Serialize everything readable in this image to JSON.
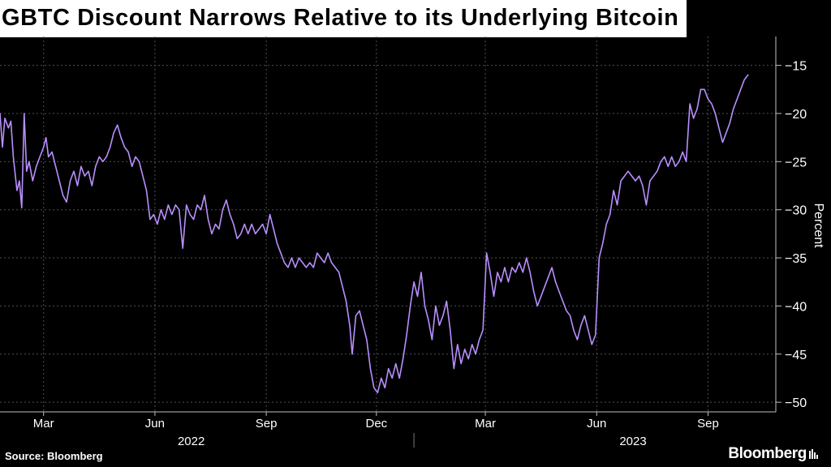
{
  "chart_data": {
    "type": "line",
    "title": "GBTC Discount Narrows Relative to its Underlying Bitcoin",
    "ylabel": "Percent",
    "xlabel": "",
    "ylim": [
      -51,
      -12
    ],
    "xlim": [
      "2022-01-24",
      "2023-10-27"
    ],
    "yticks": [
      -15,
      -20,
      -25,
      -30,
      -35,
      -40,
      -45,
      -50
    ],
    "xticks": [
      {
        "date": "2022-03-01",
        "label": "Mar"
      },
      {
        "date": "2022-06-01",
        "label": "Jun"
      },
      {
        "date": "2022-09-01",
        "label": "Sep"
      },
      {
        "date": "2022-12-01",
        "label": "Dec"
      },
      {
        "date": "2023-03-01",
        "label": "Mar"
      },
      {
        "date": "2023-06-01",
        "label": "Jun"
      },
      {
        "date": "2023-09-01",
        "label": "Sep"
      }
    ],
    "years": [
      {
        "label": "2022",
        "date": "2022-07-01"
      },
      {
        "label": "2023",
        "date": "2023-07-01"
      }
    ],
    "grid": true,
    "series": [
      {
        "color": "#b98fff",
        "points": [
          [
            "2022-01-24",
            -20.0
          ],
          [
            "2022-01-26",
            -23.5
          ],
          [
            "2022-01-28",
            -20.5
          ],
          [
            "2022-01-31",
            -21.5
          ],
          [
            "2022-02-02",
            -20.8
          ],
          [
            "2022-02-04",
            -24.5
          ],
          [
            "2022-02-07",
            -28.0
          ],
          [
            "2022-02-09",
            -27.0
          ],
          [
            "2022-02-11",
            -29.8
          ],
          [
            "2022-02-13",
            -20.0
          ],
          [
            "2022-02-15",
            -26.0
          ],
          [
            "2022-02-17",
            -25.0
          ],
          [
            "2022-02-20",
            -27.0
          ],
          [
            "2022-02-23",
            -25.5
          ],
          [
            "2022-02-26",
            -24.5
          ],
          [
            "2022-03-01",
            -23.5
          ],
          [
            "2022-03-03",
            -22.5
          ],
          [
            "2022-03-05",
            -24.5
          ],
          [
            "2022-03-08",
            -24.0
          ],
          [
            "2022-03-11",
            -25.5
          ],
          [
            "2022-03-14",
            -27.0
          ],
          [
            "2022-03-17",
            -28.5
          ],
          [
            "2022-03-20",
            -29.2
          ],
          [
            "2022-03-23",
            -27.0
          ],
          [
            "2022-03-26",
            -26.0
          ],
          [
            "2022-03-29",
            -27.5
          ],
          [
            "2022-04-01",
            -25.5
          ],
          [
            "2022-04-04",
            -26.5
          ],
          [
            "2022-04-07",
            -26.0
          ],
          [
            "2022-04-10",
            -27.5
          ],
          [
            "2022-04-13",
            -25.5
          ],
          [
            "2022-04-16",
            -24.5
          ],
          [
            "2022-04-19",
            -25.0
          ],
          [
            "2022-04-22",
            -24.5
          ],
          [
            "2022-04-25",
            -23.5
          ],
          [
            "2022-04-28",
            -22.0
          ],
          [
            "2022-05-01",
            -21.2
          ],
          [
            "2022-05-04",
            -22.5
          ],
          [
            "2022-05-07",
            -23.5
          ],
          [
            "2022-05-10",
            -24.0
          ],
          [
            "2022-05-13",
            -25.5
          ],
          [
            "2022-05-16",
            -24.5
          ],
          [
            "2022-05-19",
            -25.0
          ],
          [
            "2022-05-22",
            -26.5
          ],
          [
            "2022-05-25",
            -28.0
          ],
          [
            "2022-05-28",
            -31.0
          ],
          [
            "2022-05-31",
            -30.5
          ],
          [
            "2022-06-03",
            -31.5
          ],
          [
            "2022-06-06",
            -30.0
          ],
          [
            "2022-06-09",
            -31.0
          ],
          [
            "2022-06-12",
            -29.5
          ],
          [
            "2022-06-15",
            -30.5
          ],
          [
            "2022-06-18",
            -29.5
          ],
          [
            "2022-06-21",
            -30.0
          ],
          [
            "2022-06-24",
            -34.0
          ],
          [
            "2022-06-27",
            -29.5
          ],
          [
            "2022-06-30",
            -30.5
          ],
          [
            "2022-07-03",
            -31.0
          ],
          [
            "2022-07-06",
            -29.5
          ],
          [
            "2022-07-09",
            -30.0
          ],
          [
            "2022-07-12",
            -28.5
          ],
          [
            "2022-07-15",
            -31.0
          ],
          [
            "2022-07-18",
            -32.5
          ],
          [
            "2022-07-21",
            -31.5
          ],
          [
            "2022-07-24",
            -32.0
          ],
          [
            "2022-07-27",
            -30.0
          ],
          [
            "2022-07-30",
            -29.0
          ],
          [
            "2022-08-02",
            -30.5
          ],
          [
            "2022-08-05",
            -31.5
          ],
          [
            "2022-08-08",
            -33.0
          ],
          [
            "2022-08-11",
            -32.5
          ],
          [
            "2022-08-14",
            -31.5
          ],
          [
            "2022-08-17",
            -32.5
          ],
          [
            "2022-08-20",
            -31.5
          ],
          [
            "2022-08-23",
            -32.5
          ],
          [
            "2022-08-26",
            -32.0
          ],
          [
            "2022-08-29",
            -31.5
          ],
          [
            "2022-09-01",
            -32.5
          ],
          [
            "2022-09-04",
            -30.5
          ],
          [
            "2022-09-07",
            -32.0
          ],
          [
            "2022-09-10",
            -33.5
          ],
          [
            "2022-09-13",
            -34.5
          ],
          [
            "2022-09-16",
            -35.5
          ],
          [
            "2022-09-19",
            -36.0
          ],
          [
            "2022-09-22",
            -35.0
          ],
          [
            "2022-09-25",
            -36.0
          ],
          [
            "2022-09-28",
            -35.0
          ],
          [
            "2022-10-01",
            -35.5
          ],
          [
            "2022-10-04",
            -36.0
          ],
          [
            "2022-10-07",
            -35.5
          ],
          [
            "2022-10-10",
            -36.0
          ],
          [
            "2022-10-13",
            -34.5
          ],
          [
            "2022-10-16",
            -35.0
          ],
          [
            "2022-10-19",
            -35.5
          ],
          [
            "2022-10-22",
            -34.5
          ],
          [
            "2022-10-25",
            -35.5
          ],
          [
            "2022-10-28",
            -36.0
          ],
          [
            "2022-10-31",
            -36.5
          ],
          [
            "2022-11-03",
            -38.0
          ],
          [
            "2022-11-06",
            -39.5
          ],
          [
            "2022-11-09",
            -42.0
          ],
          [
            "2022-11-11",
            -45.0
          ],
          [
            "2022-11-14",
            -41.0
          ],
          [
            "2022-11-17",
            -40.5
          ],
          [
            "2022-11-20",
            -42.0
          ],
          [
            "2022-11-23",
            -43.5
          ],
          [
            "2022-11-26",
            -46.5
          ],
          [
            "2022-11-29",
            -48.5
          ],
          [
            "2022-12-02",
            -49.0
          ],
          [
            "2022-12-05",
            -47.5
          ],
          [
            "2022-12-08",
            -48.5
          ],
          [
            "2022-12-11",
            -46.5
          ],
          [
            "2022-12-14",
            -47.5
          ],
          [
            "2022-12-17",
            -46.0
          ],
          [
            "2022-12-20",
            -47.5
          ],
          [
            "2022-12-23",
            -45.5
          ],
          [
            "2022-12-26",
            -43.0
          ],
          [
            "2022-12-29",
            -40.0
          ],
          [
            "2023-01-01",
            -37.5
          ],
          [
            "2023-01-04",
            -39.0
          ],
          [
            "2023-01-07",
            -36.5
          ],
          [
            "2023-01-10",
            -40.0
          ],
          [
            "2023-01-13",
            -41.5
          ],
          [
            "2023-01-16",
            -43.5
          ],
          [
            "2023-01-19",
            -40.0
          ],
          [
            "2023-01-22",
            -42.0
          ],
          [
            "2023-01-25",
            -41.0
          ],
          [
            "2023-01-28",
            -39.5
          ],
          [
            "2023-01-31",
            -42.5
          ],
          [
            "2023-02-03",
            -46.5
          ],
          [
            "2023-02-06",
            -44.0
          ],
          [
            "2023-02-09",
            -46.0
          ],
          [
            "2023-02-12",
            -44.5
          ],
          [
            "2023-02-15",
            -45.5
          ],
          [
            "2023-02-18",
            -44.0
          ],
          [
            "2023-02-21",
            -45.0
          ],
          [
            "2023-02-24",
            -43.5
          ],
          [
            "2023-02-27",
            -42.5
          ],
          [
            "2023-03-02",
            -34.5
          ],
          [
            "2023-03-05",
            -36.5
          ],
          [
            "2023-03-08",
            -39.0
          ],
          [
            "2023-03-11",
            -36.5
          ],
          [
            "2023-03-14",
            -37.5
          ],
          [
            "2023-03-17",
            -36.0
          ],
          [
            "2023-03-20",
            -37.5
          ],
          [
            "2023-03-23",
            -36.0
          ],
          [
            "2023-03-26",
            -36.5
          ],
          [
            "2023-03-29",
            -35.5
          ],
          [
            "2023-04-01",
            -36.5
          ],
          [
            "2023-04-04",
            -35.0
          ],
          [
            "2023-04-07",
            -36.5
          ],
          [
            "2023-04-10",
            -38.5
          ],
          [
            "2023-04-13",
            -40.0
          ],
          [
            "2023-04-16",
            -39.0
          ],
          [
            "2023-04-19",
            -38.0
          ],
          [
            "2023-04-22",
            -37.0
          ],
          [
            "2023-04-25",
            -36.0
          ],
          [
            "2023-04-28",
            -37.5
          ],
          [
            "2023-05-01",
            -38.5
          ],
          [
            "2023-05-04",
            -39.5
          ],
          [
            "2023-05-07",
            -40.5
          ],
          [
            "2023-05-10",
            -41.0
          ],
          [
            "2023-05-13",
            -42.5
          ],
          [
            "2023-05-16",
            -43.5
          ],
          [
            "2023-05-19",
            -42.0
          ],
          [
            "2023-05-22",
            -41.0
          ],
          [
            "2023-05-25",
            -42.5
          ],
          [
            "2023-05-28",
            -44.0
          ],
          [
            "2023-05-31",
            -43.0
          ],
          [
            "2023-06-03",
            -35.0
          ],
          [
            "2023-06-06",
            -33.5
          ],
          [
            "2023-06-09",
            -31.5
          ],
          [
            "2023-06-12",
            -30.5
          ],
          [
            "2023-06-15",
            -28.0
          ],
          [
            "2023-06-18",
            -29.5
          ],
          [
            "2023-06-21",
            -27.0
          ],
          [
            "2023-06-24",
            -26.5
          ],
          [
            "2023-06-27",
            -26.0
          ],
          [
            "2023-06-30",
            -26.5
          ],
          [
            "2023-07-03",
            -27.0
          ],
          [
            "2023-07-06",
            -26.5
          ],
          [
            "2023-07-09",
            -27.5
          ],
          [
            "2023-07-12",
            -29.5
          ],
          [
            "2023-07-15",
            -27.0
          ],
          [
            "2023-07-18",
            -26.5
          ],
          [
            "2023-07-21",
            -26.0
          ],
          [
            "2023-07-24",
            -25.0
          ],
          [
            "2023-07-27",
            -24.5
          ],
          [
            "2023-07-30",
            -25.5
          ],
          [
            "2023-08-02",
            -24.5
          ],
          [
            "2023-08-05",
            -25.5
          ],
          [
            "2023-08-08",
            -25.0
          ],
          [
            "2023-08-11",
            -24.0
          ],
          [
            "2023-08-14",
            -25.0
          ],
          [
            "2023-08-17",
            -19.0
          ],
          [
            "2023-08-20",
            -20.5
          ],
          [
            "2023-08-23",
            -19.5
          ],
          [
            "2023-08-26",
            -17.5
          ],
          [
            "2023-08-29",
            -17.5
          ],
          [
            "2023-09-01",
            -18.5
          ],
          [
            "2023-09-04",
            -19.0
          ],
          [
            "2023-09-07",
            -20.0
          ],
          [
            "2023-09-10",
            -21.5
          ],
          [
            "2023-09-13",
            -23.0
          ],
          [
            "2023-09-16",
            -22.0
          ],
          [
            "2023-09-19",
            -21.0
          ],
          [
            "2023-09-22",
            -19.5
          ],
          [
            "2023-09-25",
            -18.5
          ],
          [
            "2023-09-28",
            -17.5
          ],
          [
            "2023-10-01",
            -16.5
          ],
          [
            "2023-10-04",
            -16.0
          ]
        ]
      }
    ]
  },
  "source": "Source: Bloomberg",
  "brand": "Bloomberg",
  "colors": {
    "background": "#000000",
    "line": "#b98fff",
    "grid": "#505050",
    "axis": "#bfbfbf",
    "text": "#ffffff"
  }
}
